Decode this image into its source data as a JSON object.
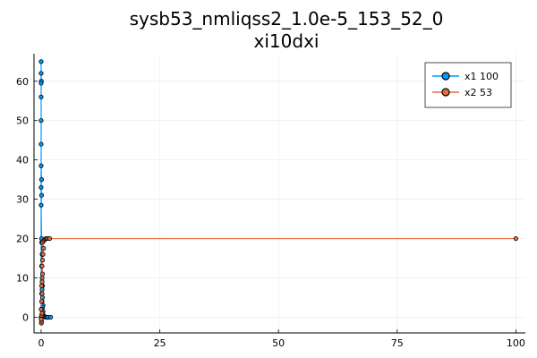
{
  "chart_data": {
    "type": "scatter",
    "title": "sysb53_nmliqss2_1.0e-5_153_52_0",
    "subtitle": "xi10dxi",
    "xlabel": "",
    "ylabel": "",
    "xlim": [
      -1.5,
      102
    ],
    "ylim": [
      -4,
      67
    ],
    "x_ticks": [
      0,
      25,
      50,
      75,
      100
    ],
    "y_ticks": [
      0,
      10,
      20,
      30,
      40,
      50,
      60
    ],
    "grid": true,
    "legend_position": "top-right",
    "series": [
      {
        "name": "x1 100",
        "color": "#009AFA",
        "points": [
          [
            0,
            0
          ],
          [
            0,
            65
          ],
          [
            0,
            62
          ],
          [
            0.05,
            60
          ],
          [
            0,
            59.5
          ],
          [
            0,
            56
          ],
          [
            0,
            50
          ],
          [
            0,
            44
          ],
          [
            0,
            38.5
          ],
          [
            0.1,
            35
          ],
          [
            0,
            33
          ],
          [
            0.1,
            31
          ],
          [
            0,
            28.5
          ],
          [
            0.1,
            20
          ],
          [
            0.1,
            19
          ],
          [
            0.2,
            16
          ],
          [
            0.1,
            13
          ],
          [
            0.2,
            10
          ],
          [
            0.3,
            8
          ],
          [
            0.2,
            7
          ],
          [
            0.1,
            6
          ],
          [
            0.3,
            5
          ],
          [
            0.2,
            4
          ],
          [
            0.4,
            3
          ],
          [
            0.3,
            2.5
          ],
          [
            0.2,
            2
          ],
          [
            0.4,
            1.5
          ],
          [
            0.3,
            1
          ],
          [
            0.5,
            0.5
          ],
          [
            0.6,
            0.2
          ],
          [
            0.8,
            0.1
          ],
          [
            1,
            0
          ],
          [
            1.2,
            0
          ],
          [
            1.5,
            0
          ],
          [
            2,
            0
          ]
        ]
      },
      {
        "name": "x2 53",
        "color": "#E26F46",
        "points": [
          [
            0,
            0
          ],
          [
            0.05,
            -1.5
          ],
          [
            0.1,
            -1
          ],
          [
            0,
            -0.5
          ],
          [
            0.1,
            0.5
          ],
          [
            0.2,
            1
          ],
          [
            0,
            2
          ],
          [
            0.1,
            4
          ],
          [
            0.2,
            6
          ],
          [
            0.1,
            8
          ],
          [
            0.2,
            9
          ],
          [
            0.3,
            11
          ],
          [
            0.2,
            13
          ],
          [
            0.3,
            14.5
          ],
          [
            0.4,
            16
          ],
          [
            0.5,
            17.5
          ],
          [
            0.3,
            19
          ],
          [
            0.6,
            19.5
          ],
          [
            0.8,
            19.8
          ],
          [
            1,
            20
          ],
          [
            1.2,
            20
          ],
          [
            1.5,
            20
          ],
          [
            1.8,
            20
          ],
          [
            100,
            20
          ]
        ]
      }
    ]
  }
}
